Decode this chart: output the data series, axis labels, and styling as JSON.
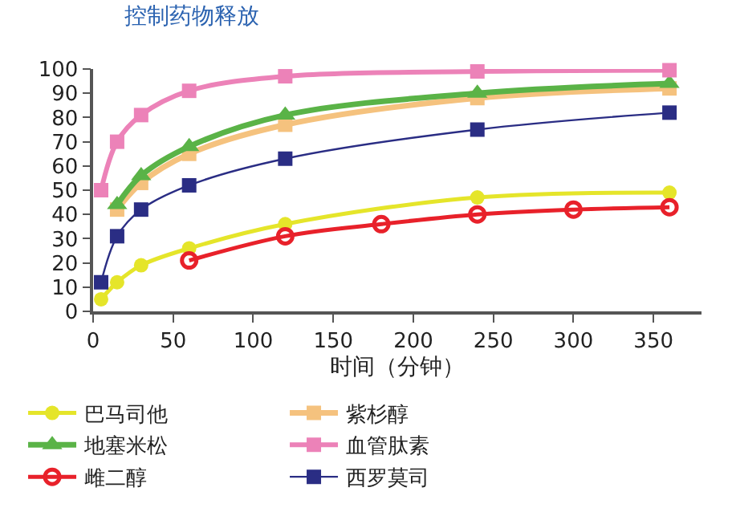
{
  "chart_data": {
    "type": "line",
    "title": "控制药物释放",
    "xlabel": "时间（分钟）",
    "xlim": [
      0,
      380
    ],
    "xticks": [
      0,
      50,
      100,
      150,
      200,
      250,
      300,
      350
    ],
    "ylim": [
      0,
      100
    ],
    "yticks": [
      0,
      10,
      20,
      30,
      40,
      50,
      60,
      70,
      80,
      90,
      100
    ],
    "grid": false,
    "legend": "bottom",
    "line_style": "solid",
    "series": [
      {
        "name": "巴马司他",
        "color": "#e5e52a",
        "marker": "circle",
        "x": [
          5,
          15,
          30,
          60,
          120,
          240,
          360
        ],
        "values": [
          5,
          12,
          19,
          26,
          36,
          47,
          49
        ]
      },
      {
        "name": "紫杉醇",
        "color": "#f5c27e",
        "marker": "square",
        "x": [
          15,
          30,
          60,
          120,
          240,
          360
        ],
        "values": [
          42,
          53,
          65,
          77,
          88,
          92
        ]
      },
      {
        "name": "地塞米松",
        "color": "#5ab347",
        "marker": "triangle",
        "x": [
          15,
          30,
          60,
          120,
          240,
          360
        ],
        "values": [
          44,
          56,
          68,
          81,
          90,
          94
        ]
      },
      {
        "name": "血管肽素",
        "color": "#ec82b8",
        "marker": "square",
        "x": [
          5,
          15,
          30,
          60,
          120,
          240,
          360
        ],
        "values": [
          50,
          70,
          81,
          91,
          97,
          99,
          99.5
        ]
      },
      {
        "name": "雌二醇",
        "color": "#e8212a",
        "marker": "circle-open",
        "x": [
          60,
          120,
          180,
          240,
          300,
          360
        ],
        "values": [
          21,
          31,
          36,
          40,
          42,
          43
        ]
      },
      {
        "name": "西罗莫司",
        "color": "#2a2d84",
        "marker": "square",
        "x": [
          5,
          15,
          30,
          60,
          120,
          240,
          360
        ],
        "values": [
          12,
          31,
          42,
          52,
          63,
          75,
          82
        ]
      }
    ]
  }
}
